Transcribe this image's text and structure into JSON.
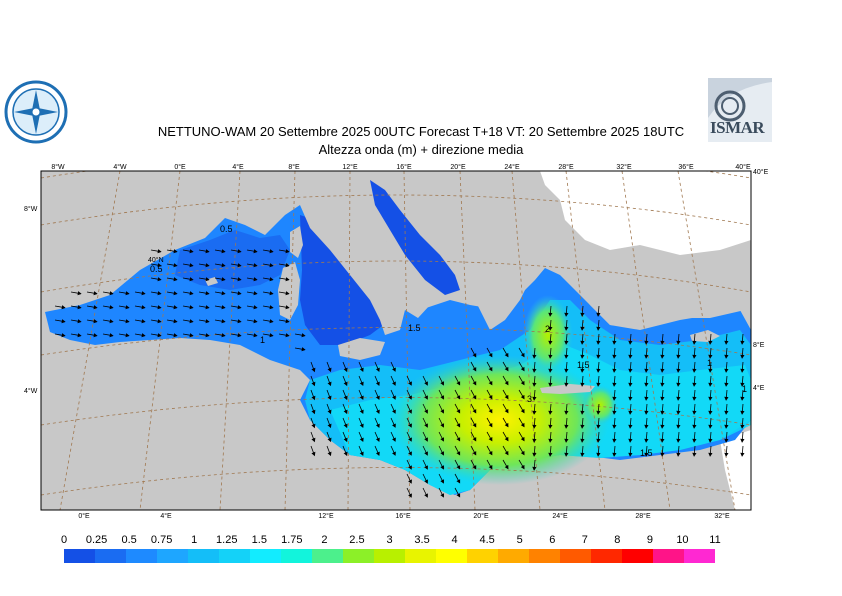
{
  "header": {
    "title_line1": "NETTUNO-WAM  20 Settembre 2025 00UTC Forecast T+18 VT: 20 Settembre 2025 18UTC",
    "title_line2": "Altezza onda (m) + direzione media"
  },
  "logos": {
    "left": "nettuno-logo",
    "right_text": "ISMAR"
  },
  "map": {
    "top_lon_labels": [
      "8°W",
      "4°W",
      "0°E",
      "4°E",
      "8°E",
      "12°E",
      "16°E",
      "20°E",
      "24°E",
      "28°E",
      "32°E",
      "36°E",
      "40°E"
    ],
    "bottom_lon_labels": [
      "0°E",
      "4°E",
      "12°E",
      "16°E",
      "20°E",
      "24°E",
      "28°E",
      "32°E"
    ],
    "left_lat_labels": [
      "8°W",
      "4°W"
    ],
    "right_lat_labels": [
      "40°E",
      "8°E",
      "4°E"
    ],
    "inner_label": "40°N",
    "contour_labels": [
      "0.5",
      "0.5",
      "1",
      "1.5",
      "2",
      "1.5",
      "3",
      "1.5",
      "1",
      "1"
    ]
  },
  "legend": {
    "labels": [
      "0",
      "0.25",
      "0.5",
      "0.75",
      "1",
      "1.25",
      "1.5",
      "1.75",
      "2",
      "2.5",
      "3",
      "3.5",
      "4",
      "4.5",
      "5",
      "6",
      "7",
      "8",
      "9",
      "10",
      "11"
    ],
    "colors": [
      "#1450e6",
      "#1a6cf2",
      "#1e8aff",
      "#1ea6ff",
      "#14bef8",
      "#14d2f8",
      "#12ecff",
      "#12f4dc",
      "#4cf08c",
      "#8cf028",
      "#b8f000",
      "#e8f400",
      "#ffff00",
      "#ffd200",
      "#ffaa00",
      "#ff8200",
      "#ff5a00",
      "#ff2800",
      "#ff0000",
      "#ff1488",
      "#ff28d2"
    ]
  }
}
